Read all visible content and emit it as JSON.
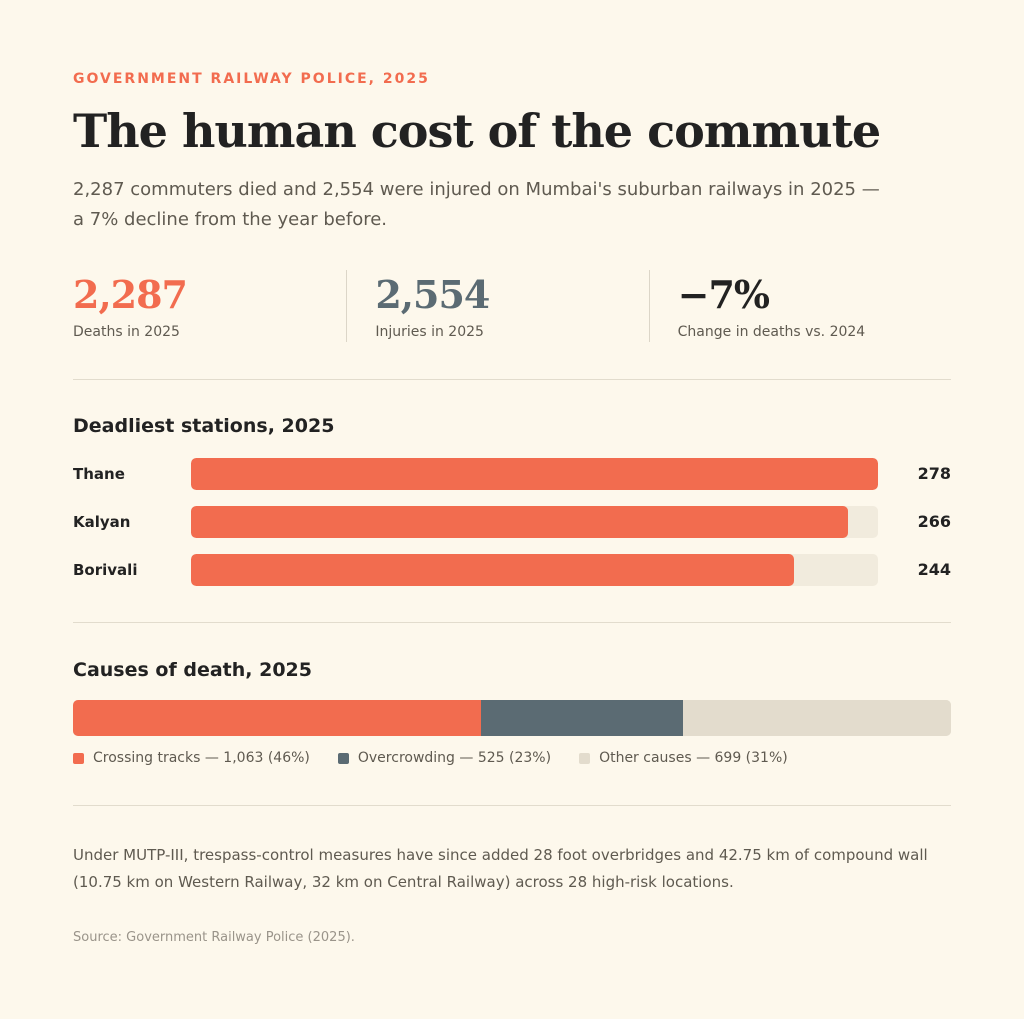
{
  "header": {
    "kicker": "GOVERNMENT RAILWAY POLICE, 2025",
    "title": "The human cost of the commute",
    "subtitle": "2,287 commuters died and 2,554 were injured on Mumbai's suburban railways in 2025 — a 7% decline from the year before."
  },
  "stats": [
    {
      "value": "2,287",
      "label": "Deaths in 2025",
      "color": "#f26c4f"
    },
    {
      "value": "2,554",
      "label": "Injuries in 2025",
      "color": "#5b6b73"
    },
    {
      "value": "−7%",
      "label": "Change in deaths vs. 2024",
      "color": "#222222"
    }
  ],
  "colors": {
    "accent": "#f26c4f",
    "slate": "#5b6b73",
    "other": "#e3dccd",
    "background": "#fdf8ec"
  },
  "chart_data": [
    {
      "type": "bar",
      "title": "Deadliest stations, 2025",
      "categories": [
        "Thane",
        "Kalyan",
        "Borivali"
      ],
      "values": [
        278,
        266,
        244
      ],
      "value_labels": [
        "278",
        "266",
        "244"
      ],
      "xlim": [
        0,
        278
      ],
      "orientation": "horizontal",
      "grid": false
    },
    {
      "type": "bar",
      "title": "Causes of death, 2025",
      "stacked": true,
      "orientation": "horizontal",
      "series": [
        {
          "name": "Crossing tracks",
          "value": 1063,
          "percent": 46,
          "color": "#f26c4f",
          "legend": "Crossing tracks — 1,063 (46%)"
        },
        {
          "name": "Overcrowding",
          "value": 525,
          "percent": 23,
          "color": "#5b6b73",
          "legend": "Overcrowding — 525 (23%)"
        },
        {
          "name": "Other causes",
          "value": 699,
          "percent": 31,
          "color": "#e3dccd",
          "legend": "Other causes — 699 (31%)"
        }
      ],
      "legend_position": "bottom-left"
    }
  ],
  "note": "Under MUTP-III, trespass-control measures have since added 28 foot overbridges and 42.75 km of compound wall (10.75 km on Western Railway, 32 km on Central Railway) across 28 high-risk locations.",
  "source": "Source: Government Railway Police (2025)."
}
